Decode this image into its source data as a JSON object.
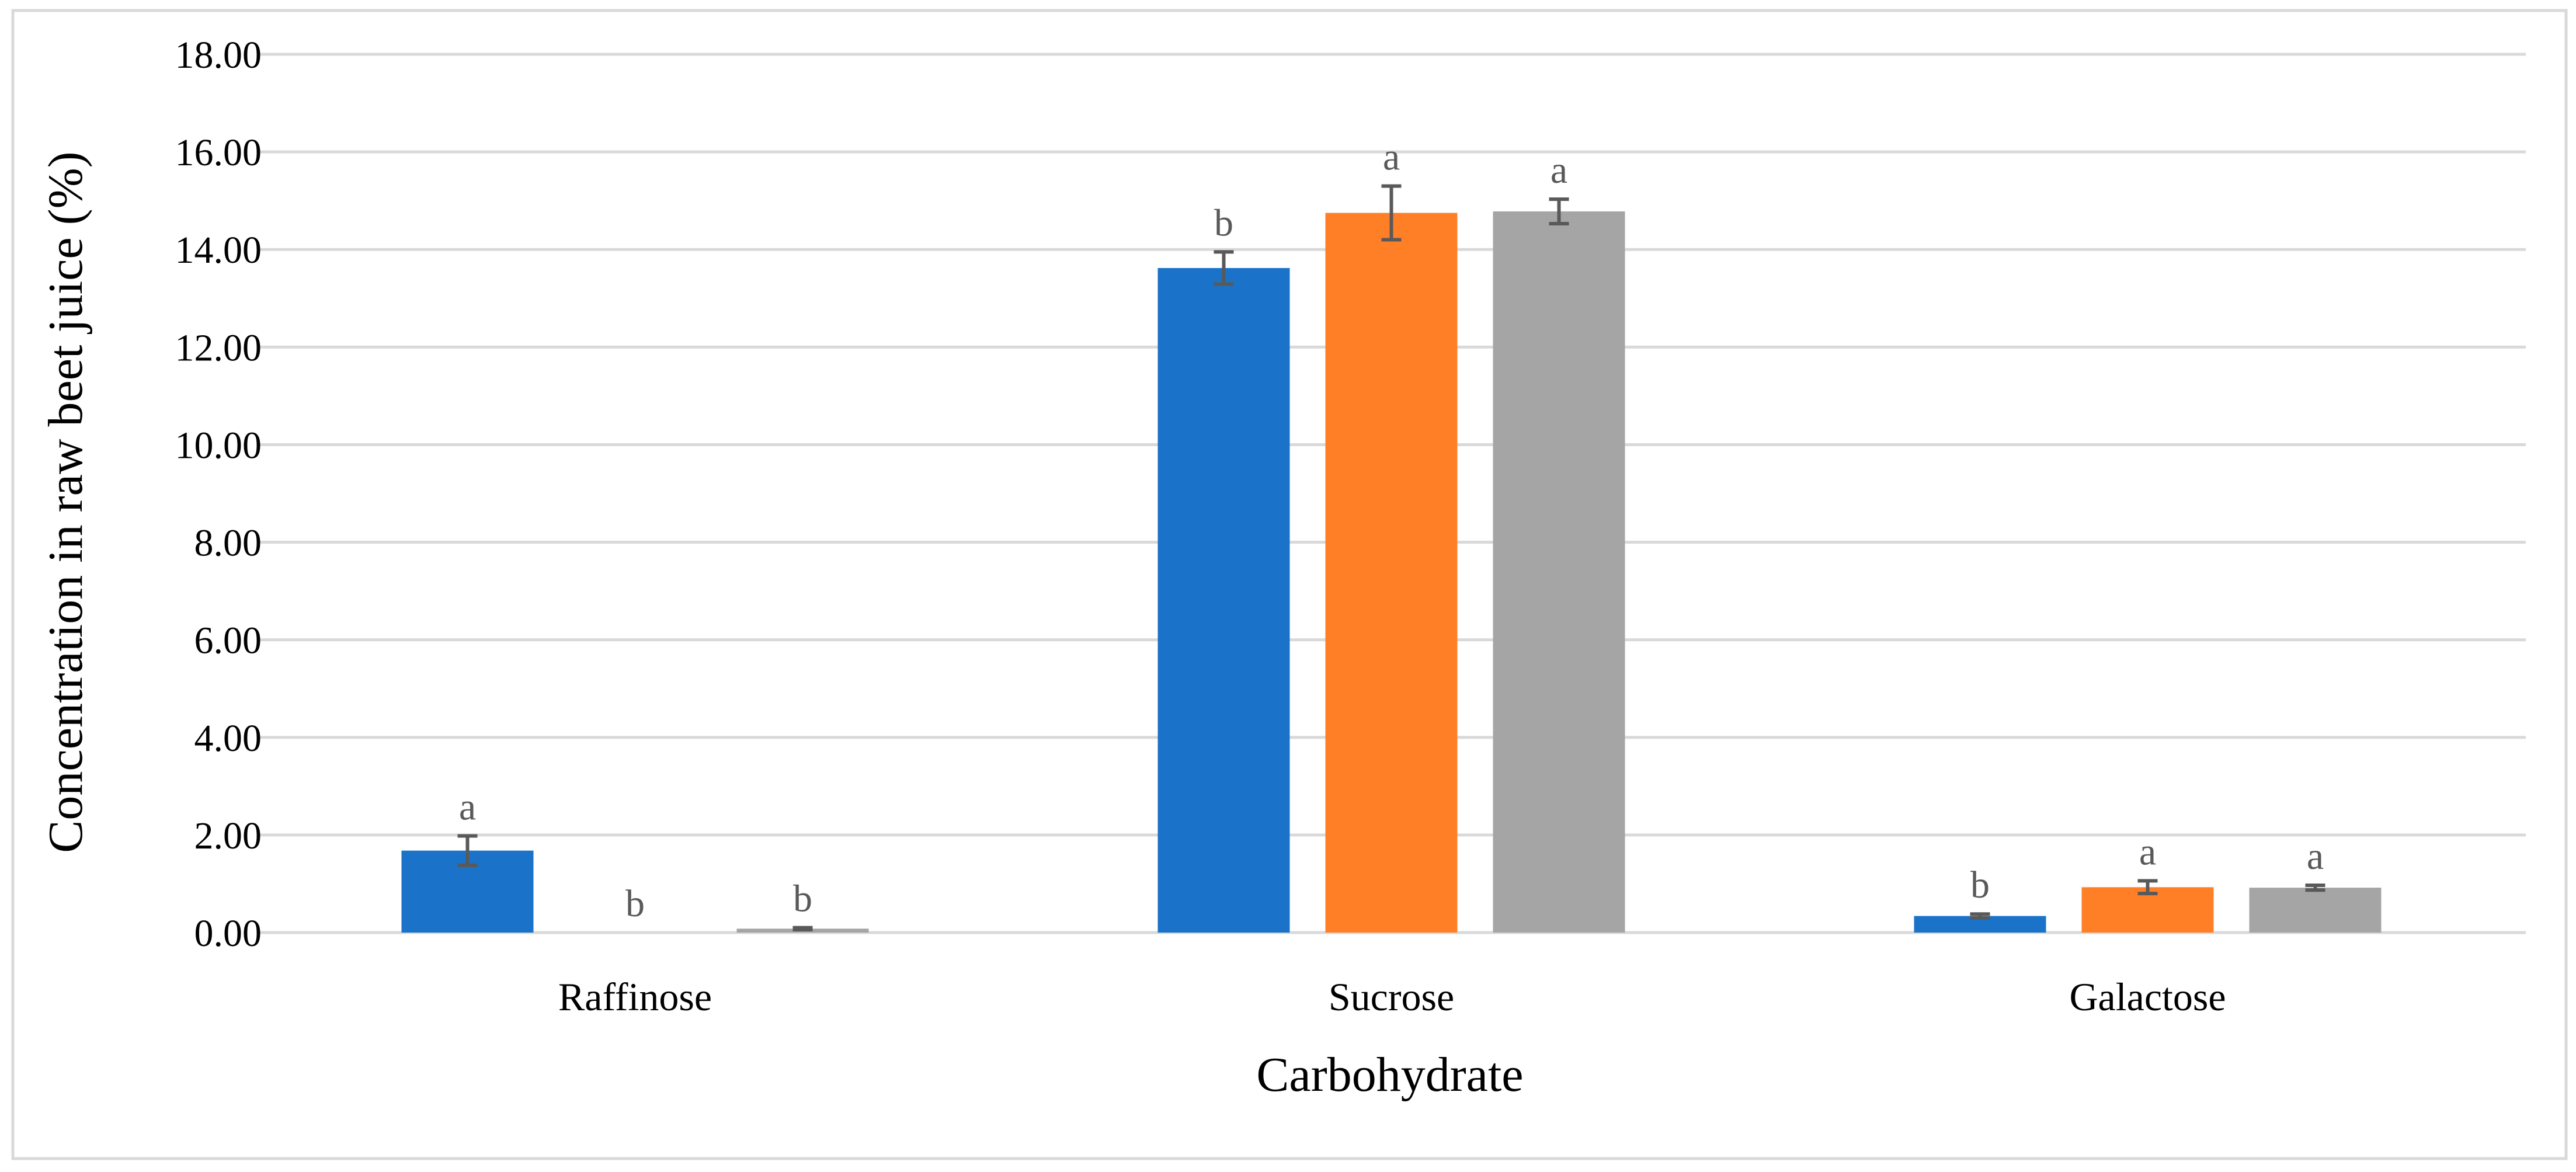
{
  "chart_data": {
    "type": "bar",
    "title": "",
    "xlabel": "Carbohydrate",
    "ylabel": "Concentration in raw beet juice (%)",
    "ylim": [
      0,
      18
    ],
    "ytick_step": 2,
    "ytick_labels": [
      "0.00",
      "2.00",
      "4.00",
      "6.00",
      "8.00",
      "10.00",
      "12.00",
      "14.00",
      "16.00",
      "18.00"
    ],
    "grid": true,
    "legend": "none",
    "categories": [
      "Raffinose",
      "Sucrose",
      "Galactose"
    ],
    "series": [
      {
        "name": "Series 1",
        "color": "#1a73c9",
        "values": [
          1.68,
          13.62,
          0.34
        ],
        "errors": [
          0.3,
          0.33,
          0.04
        ],
        "significance": [
          "a",
          "b",
          "b"
        ]
      },
      {
        "name": "Series 2",
        "color": "#ff7f27",
        "values": [
          0.0,
          14.75,
          0.93
        ],
        "errors": [
          0.0,
          0.55,
          0.13
        ],
        "significance": [
          "b",
          "a",
          "a"
        ]
      },
      {
        "name": "Series 3",
        "color": "#a5a5a5",
        "values": [
          0.08,
          14.78,
          0.92
        ],
        "errors": [
          0.02,
          0.25,
          0.05
        ],
        "significance": [
          "b",
          "a",
          "a"
        ]
      }
    ],
    "error_bar_color": "#595959",
    "gridline_color": "#d9d9d9",
    "frame_color": "#d9d9d9"
  }
}
